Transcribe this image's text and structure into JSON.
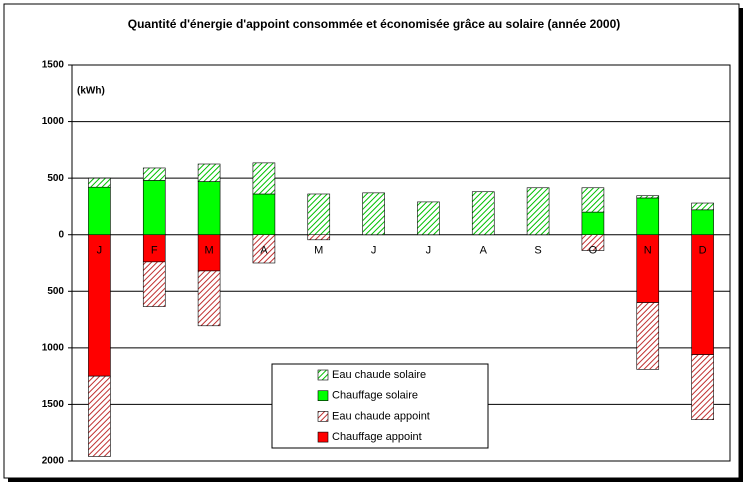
{
  "chart_data": {
    "type": "bar",
    "title": "Quantité d'énergie d'appoint consommée et économisée grâce au solaire (année 2000)",
    "annotation": "(kWh)",
    "categories": [
      "J",
      "F",
      "M",
      "A",
      "M",
      "J",
      "J",
      "A",
      "S",
      "O",
      "N",
      "D"
    ],
    "series": [
      {
        "name": "Eau chaude solaire",
        "color": "#00c000",
        "hatch": true,
        "values": [
          80,
          110,
          155,
          275,
          360,
          370,
          290,
          380,
          415,
          215,
          20,
          60
        ]
      },
      {
        "name": "Chauffage solaire",
        "color": "#00ff00",
        "hatch": false,
        "values": [
          420,
          480,
          470,
          360,
          0,
          0,
          0,
          0,
          0,
          200,
          325,
          220
        ]
      },
      {
        "name": "Eau chaude appoint",
        "color": "#c03030",
        "hatch": true,
        "values": [
          -710,
          -395,
          -485,
          -250,
          -45,
          0,
          0,
          0,
          0,
          -140,
          -590,
          -575
        ]
      },
      {
        "name": "Chauffage appoint",
        "color": "#ff0000",
        "hatch": false,
        "values": [
          -1250,
          -240,
          -320,
          0,
          0,
          0,
          0,
          0,
          0,
          0,
          -600,
          -1060
        ]
      }
    ],
    "ylim": [
      -2000,
      1500
    ],
    "yticks": [
      {
        "value": -2000,
        "label": "2000"
      },
      {
        "value": -1500,
        "label": "1500"
      },
      {
        "value": -1000,
        "label": "1000"
      },
      {
        "value": -500,
        "label": "500"
      },
      0,
      500,
      1000,
      1500
    ],
    "grid": true,
    "stacked": true
  }
}
